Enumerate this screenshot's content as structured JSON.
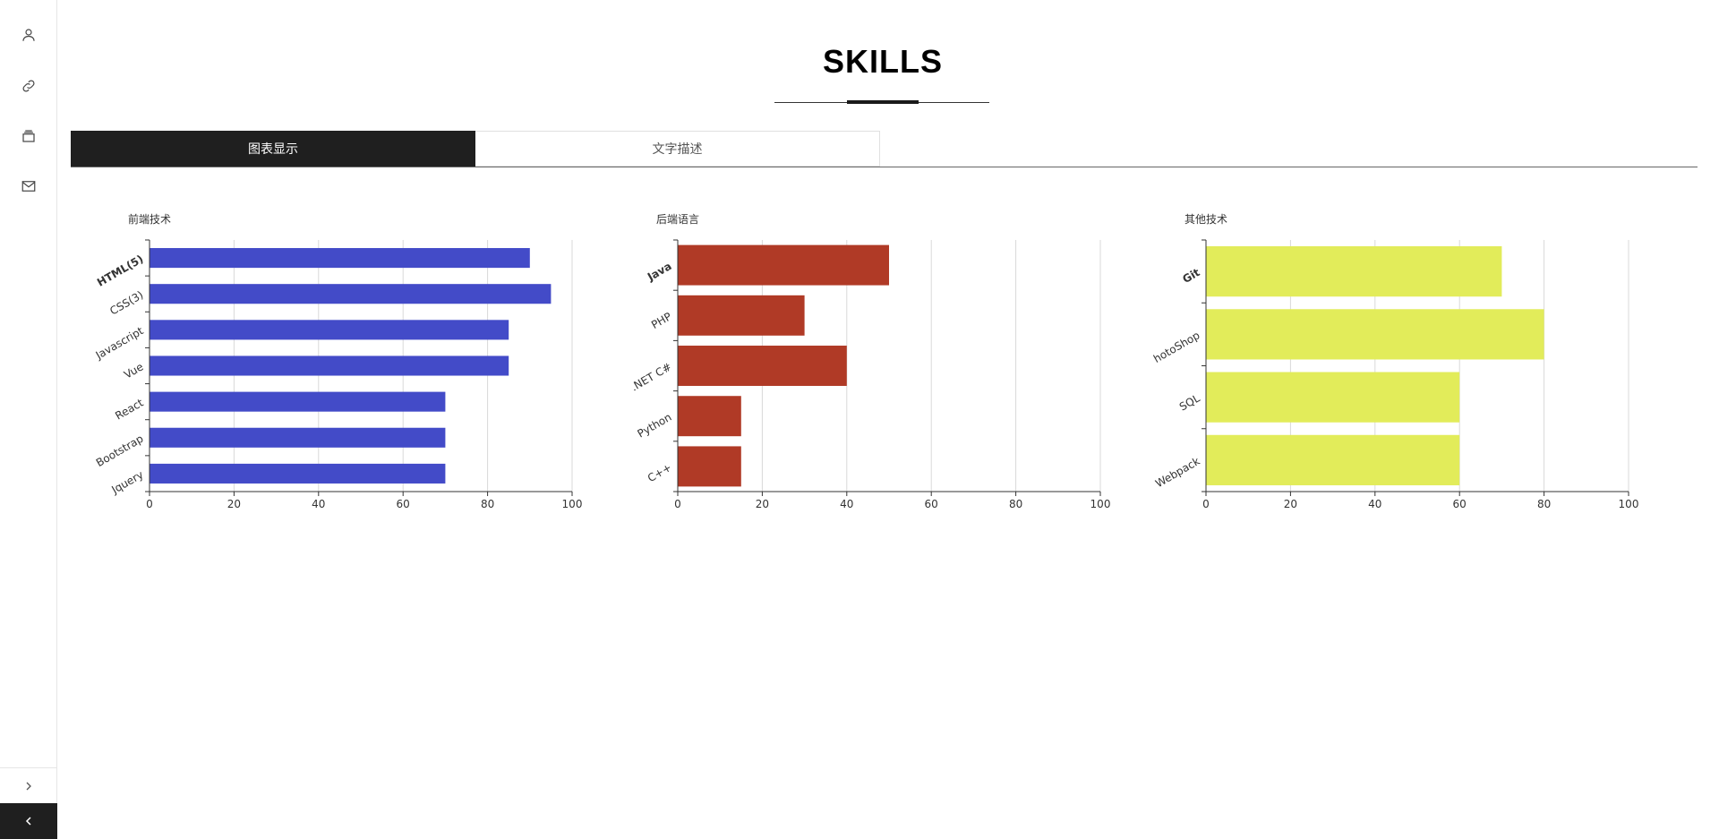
{
  "page": {
    "title": "SKILLS"
  },
  "sidebar": {
    "icons": [
      "user-icon",
      "link-icon",
      "stack-icon",
      "mail-icon"
    ],
    "next_icon": "chevron-right-icon",
    "prev_icon": "chevron-left-icon"
  },
  "tabs": [
    {
      "label": "图表显示",
      "active": true
    },
    {
      "label": "文字描述",
      "active": false
    }
  ],
  "colors": {
    "frontend": "#434bc8",
    "backend": "#b03a26",
    "other": "#e2ec5a",
    "tab_active_bg": "#1f1f1f"
  },
  "chart_data": [
    {
      "type": "bar",
      "orientation": "horizontal",
      "title": "前端技术",
      "categories": [
        "HTML(5)",
        "CSS(3)",
        "Javascript",
        "Vue",
        "React",
        "Bootstrap",
        "Jquery"
      ],
      "values": [
        90,
        95,
        85,
        85,
        70,
        70,
        70
      ],
      "xlim": [
        0,
        100
      ],
      "xticks": [
        0,
        20,
        40,
        60,
        80,
        100
      ],
      "grid": true,
      "color": "#434bc8"
    },
    {
      "type": "bar",
      "orientation": "horizontal",
      "title": "后端语言",
      "categories": [
        "Java",
        "PHP",
        ".NET C#",
        "Python",
        "C++"
      ],
      "values": [
        50,
        30,
        40,
        15,
        15
      ],
      "xlim": [
        0,
        100
      ],
      "xticks": [
        0,
        20,
        40,
        60,
        80,
        100
      ],
      "grid": true,
      "color": "#b03a26"
    },
    {
      "type": "bar",
      "orientation": "horizontal",
      "title": "其他技术",
      "categories": [
        "Git",
        "hotoShop",
        "SQL",
        "Webpack"
      ],
      "values": [
        70,
        80,
        60,
        60
      ],
      "xlim": [
        0,
        100
      ],
      "xticks": [
        0,
        20,
        40,
        60,
        80,
        100
      ],
      "grid": true,
      "color": "#e2ec5a"
    }
  ]
}
